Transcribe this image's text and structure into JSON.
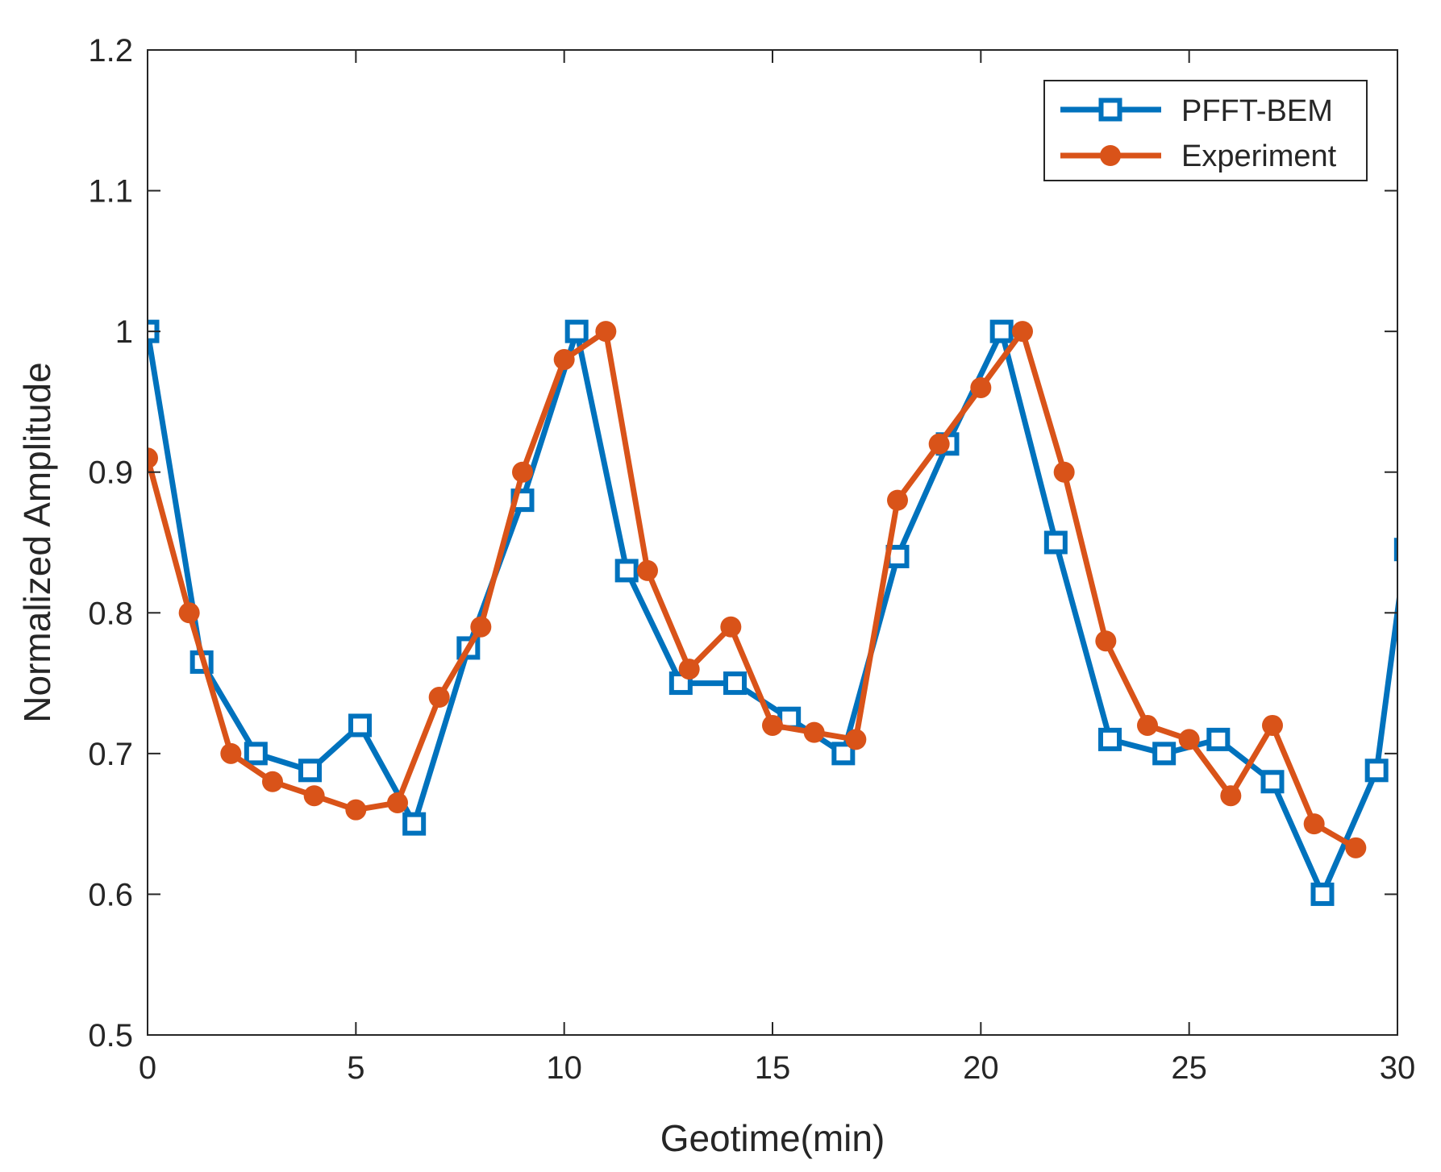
{
  "chart_data": {
    "type": "line",
    "title": "",
    "xlabel": "Geotime(min)",
    "ylabel": "Normalized Amplitude",
    "xlim": [
      0,
      30
    ],
    "ylim": [
      0.5,
      1.2
    ],
    "xticks": [
      "0",
      "5",
      "10",
      "15",
      "20",
      "25",
      "30"
    ],
    "yticks": [
      "0.5",
      "0.6",
      "0.7",
      "0.8",
      "0.9",
      "1",
      "1.1",
      "1.2"
    ],
    "grid": false,
    "legend_position": "top-right",
    "series": [
      {
        "name": "PFFT-BEM",
        "color": "#0072BD",
        "marker": "square",
        "x": [
          0,
          1.3,
          2.6,
          3.9,
          5.1,
          6.4,
          7.7,
          9.0,
          10.3,
          11.5,
          12.8,
          14.1,
          15.4,
          16.7,
          18.0,
          19.2,
          20.5,
          21.8,
          23.1,
          24.4,
          25.7,
          27.0,
          28.2,
          29.5,
          30.2
        ],
        "y": [
          1.0,
          0.765,
          0.7,
          0.688,
          0.72,
          0.65,
          0.775,
          0.88,
          1.0,
          0.83,
          0.75,
          0.75,
          0.725,
          0.7,
          0.84,
          0.92,
          1.0,
          0.85,
          0.71,
          0.7,
          0.71,
          0.68,
          0.6,
          0.688,
          0.845
        ]
      },
      {
        "name": "Experiment",
        "color": "#D95319",
        "marker": "circle",
        "x": [
          0,
          1,
          2,
          3,
          4,
          5,
          6,
          7,
          8,
          9,
          10,
          11,
          12,
          13,
          14,
          15,
          16,
          17,
          18,
          19,
          20,
          21,
          22,
          23,
          24,
          25,
          26,
          27,
          28,
          29
        ],
        "y": [
          0.91,
          0.8,
          0.7,
          0.68,
          0.67,
          0.66,
          0.665,
          0.74,
          0.79,
          0.9,
          0.98,
          1.0,
          0.83,
          0.76,
          0.79,
          0.72,
          0.715,
          0.71,
          0.88,
          0.92,
          0.96,
          1.0,
          0.9,
          0.78,
          0.72,
          0.71,
          0.67,
          0.72,
          0.65,
          0.633
        ]
      }
    ]
  }
}
